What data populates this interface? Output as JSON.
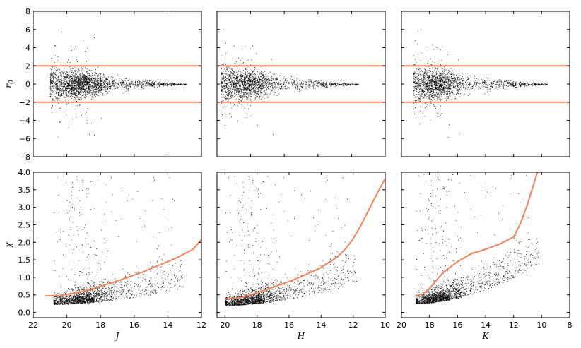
{
  "chart_data": [
    {
      "type": "scatter",
      "panel": "top-left",
      "xlabel": "",
      "ylabel": "r_0",
      "xlim": [
        22,
        12
      ],
      "ylim": [
        -8,
        8
      ],
      "xticks": [],
      "yticks": [
        -8,
        -6,
        -4,
        -2,
        0,
        2,
        4,
        6,
        8
      ],
      "hlines": [
        2,
        -2
      ],
      "grid": false,
      "point_cloud": {
        "mag_range": [
          21,
          12.9
        ],
        "peak_mag": 19.2,
        "count": 3200,
        "spread_at_faint": 1.0,
        "spread_at_bright": 0.05,
        "outlier_max": 7
      }
    },
    {
      "type": "scatter",
      "panel": "top-middle",
      "xlabel": "",
      "ylabel": "",
      "xlim": [
        20,
        10
      ],
      "ylim": [
        -8,
        8
      ],
      "xticks": [],
      "yticks": [],
      "hlines": [
        2,
        -2
      ],
      "grid": false,
      "point_cloud": {
        "mag_range": [
          19.8,
          11.6
        ],
        "peak_mag": 18.3,
        "count": 3400,
        "spread_at_faint": 1.1,
        "spread_at_bright": 0.05,
        "outlier_max": 7.5
      }
    },
    {
      "type": "scatter",
      "panel": "top-right",
      "xlabel": "",
      "ylabel": "",
      "xlim": [
        20,
        8
      ],
      "ylim": [
        -8,
        8
      ],
      "xticks": [],
      "yticks": [],
      "hlines": [
        2,
        -2
      ],
      "grid": false,
      "point_cloud": {
        "mag_range": [
          19.2,
          9.6
        ],
        "peak_mag": 17.5,
        "count": 3400,
        "spread_at_faint": 1.1,
        "spread_at_bright": 0.05,
        "outlier_max": 7.3
      }
    },
    {
      "type": "scatter",
      "panel": "bottom-left",
      "xlabel": "J",
      "ylabel": "χ",
      "xlim": [
        22,
        12
      ],
      "ylim": [
        -0.15,
        4.0
      ],
      "xticks": [
        22,
        20,
        18,
        16,
        14,
        12
      ],
      "yticks": [
        0.0,
        0.5,
        1.0,
        1.5,
        2.0,
        2.5,
        3.0,
        3.5,
        4.0
      ],
      "ytick_labels": [
        "0.0",
        "0.5",
        "1.0",
        "1.5",
        "2.0",
        "2.5",
        "3.0",
        "3.5",
        "4.0"
      ],
      "grid": false,
      "curve": {
        "x": [
          21.3,
          20.5,
          19.5,
          18.5,
          17.5,
          16.5,
          15.5,
          14.5,
          13.5,
          12.5,
          12.0
        ],
        "y": [
          0.47,
          0.48,
          0.55,
          0.67,
          0.82,
          0.98,
          1.15,
          1.35,
          1.55,
          1.8,
          2.08
        ]
      },
      "point_cloud": {
        "mag_range": [
          20.8,
          13.1
        ],
        "peak_mag": 19.0,
        "count": 3600,
        "base_start": 0.28,
        "base_end": 0.75,
        "outlier_max": 3.9
      }
    },
    {
      "type": "scatter",
      "panel": "bottom-middle",
      "xlabel": "H",
      "ylabel": "",
      "xlim": [
        20.5,
        10
      ],
      "ylim": [
        -0.15,
        4.0
      ],
      "xticks": [
        20,
        18,
        16,
        14,
        12,
        10
      ],
      "yticks": [],
      "grid": false,
      "curve": {
        "x": [
          20.0,
          19.0,
          18.0,
          17.0,
          16.0,
          15.0,
          14.0,
          13.0,
          12.5,
          12.0,
          11.5,
          11.0,
          10.5,
          10.0
        ],
        "y": [
          0.38,
          0.42,
          0.56,
          0.72,
          0.88,
          1.07,
          1.28,
          1.58,
          1.8,
          2.1,
          2.5,
          2.95,
          3.4,
          3.82
        ]
      },
      "point_cloud": {
        "mag_range": [
          20.0,
          11.8
        ],
        "peak_mag": 18.2,
        "count": 4200,
        "base_start": 0.25,
        "base_end": 0.9,
        "outlier_max": 3.9
      }
    },
    {
      "type": "scatter",
      "panel": "bottom-right",
      "xlabel": "K",
      "ylabel": "",
      "xlim": [
        20,
        8
      ],
      "ylim": [
        -0.15,
        4.0
      ],
      "xticks": [
        20,
        18,
        16,
        14,
        12,
        10,
        8
      ],
      "yticks": [],
      "grid": false,
      "curve": {
        "x": [
          19.0,
          18.5,
          18.0,
          17.5,
          17.0,
          16.0,
          15.0,
          14.0,
          13.0,
          12.0,
          11.5,
          11.0,
          10.5,
          10.3
        ],
        "y": [
          0.48,
          0.52,
          0.68,
          0.92,
          1.15,
          1.45,
          1.68,
          1.8,
          1.95,
          2.15,
          2.55,
          3.1,
          3.75,
          4.0
        ]
      },
      "point_cloud": {
        "mag_range": [
          19.0,
          10.2
        ],
        "peak_mag": 17.2,
        "count": 4400,
        "base_start": 0.3,
        "base_end": 1.4,
        "outlier_max": 3.95
      }
    }
  ],
  "colors": {
    "curve": "#f4835a",
    "points": "#000000",
    "frame": "#000000"
  }
}
